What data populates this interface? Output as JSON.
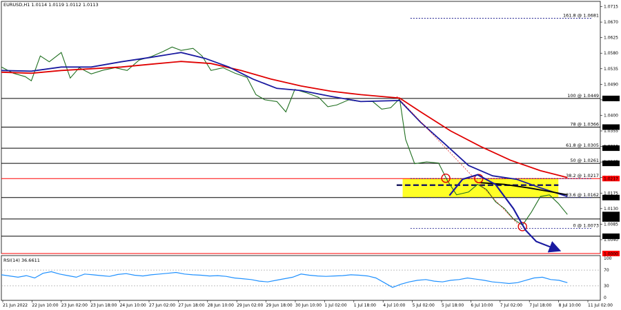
{
  "header": {
    "main_info": "EURUSD,H1  1.0114 1.0119 1.0112 1.0113",
    "rsi_info": "RSI(14) 36.6611"
  },
  "colors": {
    "background": "#ffffff",
    "level_line": "#000000",
    "red_line": "#ff0000",
    "red_ma": "#e00000",
    "blue_ma": "#1a1aa0",
    "black_ma": "#000000",
    "candle_up": "#00a000",
    "candle_down": "#000000",
    "zone": "#ffff00",
    "fib_dotted": "#000080",
    "rsi_line": "#1e90ff",
    "marker": "#e00000"
  },
  "chart_data": {
    "type": "line",
    "title": "EURUSD,H1",
    "ohlc_last": {
      "open": 1.0114,
      "high": 1.0119,
      "low": 1.0112,
      "close": 1.0113
    },
    "ylim": [
      1.0,
      1.073
    ],
    "price_ticks": [
      "1.0715",
      "1.0670",
      "1.0625",
      "1.0580",
      "1.0535",
      "1.0490",
      "1.0445",
      "1.0400",
      "1.0355",
      "1.0310",
      "1.0265",
      "1.0220",
      "1.0175",
      "1.0130",
      "1.0085",
      "1.0040"
    ],
    "x_ticks": [
      "21 Jun 2022",
      "22 Jun 10:00",
      "23 Jun 02:00",
      "23 Jun 18:00",
      "24 Jun 10:00",
      "27 Jun 02:00",
      "27 Jun 18:00",
      "28 Jun 10:00",
      "29 Jun 02:00",
      "29 Jun 18:00",
      "30 Jun 10:00",
      "1 Jul 02:00",
      "1 Jul 18:00",
      "4 Jul 10:00",
      "5 Jul 02:00",
      "5 Jul 18:00",
      "6 Jul 10:00",
      "7 Jul 02:00",
      "7 Jul 18:00",
      "8 Jul 10:00",
      "11 Jul 02:00"
    ],
    "fib_levels": [
      {
        "label": "161.8 @ 1.0681",
        "value": 1.0681,
        "style": "dotted"
      },
      {
        "label": "100 @ 1.0449",
        "value": 1.0449,
        "style": "solid"
      },
      {
        "label": "78 @ 1.0366",
        "value": 1.0366,
        "style": "solid"
      },
      {
        "label": "61.8 @ 1.0305",
        "value": 1.0305,
        "style": "solid"
      },
      {
        "label": "50 @ 1.0261",
        "value": 1.0261,
        "style": "solid"
      },
      {
        "label": "38.2 @ 1.0217",
        "value": 1.0217,
        "style": "dotted"
      },
      {
        "label": "23.6 @ 1.0162",
        "value": 1.0162,
        "style": "dotted"
      },
      {
        "label": "0 @ 1.0073",
        "value": 1.0073,
        "style": "dotted"
      }
    ],
    "horizontal_lines": [
      {
        "value": 1.0449,
        "color": "#000000"
      },
      {
        "value": 1.0366,
        "color": "#000000"
      },
      {
        "value": 1.0305,
        "color": "#000000"
      },
      {
        "value": 1.0261,
        "color": "#000000"
      },
      {
        "value": 1.0217,
        "color": "#ff0000"
      },
      {
        "value": 1.0162,
        "color": "#000000"
      },
      {
        "value": 1.01,
        "color": "#000000"
      },
      {
        "value": 1.005,
        "color": "#000000"
      },
      {
        "value": 1.0,
        "color": "#ff0000"
      }
    ],
    "axis_badges": [
      {
        "text": "1.0449",
        "value": 1.0449,
        "bg": "#000000",
        "fg": "#ffffff"
      },
      {
        "text": "1.0366",
        "value": 1.0366,
        "bg": "#000000",
        "fg": "#ffffff"
      },
      {
        "text": "1.0305",
        "value": 1.0305,
        "bg": "#000000",
        "fg": "#ffffff"
      },
      {
        "text": "1.0261",
        "value": 1.0261,
        "bg": "#000000",
        "fg": "#ffffff"
      },
      {
        "text": "1.0217",
        "value": 1.0217,
        "bg": "#ff0000",
        "fg": "#ffffff"
      },
      {
        "text": "1.0162",
        "value": 1.0162,
        "bg": "#000000",
        "fg": "#ffffff"
      },
      {
        "text": "1.0113",
        "value": 1.0113,
        "bg": "#000000",
        "fg": "#ffffff"
      },
      {
        "text": "1.0100",
        "value": 1.01,
        "bg": "#000000",
        "fg": "#ffffff"
      },
      {
        "text": "1.0050",
        "value": 1.005,
        "bg": "#000000",
        "fg": "#ffffff"
      },
      {
        "text": "1.0000",
        "value": 1.0,
        "bg": "#ff0000",
        "fg": "#ffffff"
      }
    ],
    "zone": {
      "from": 1.0162,
      "to": 1.0217,
      "x_start": 0.67,
      "x_end": 0.93
    },
    "dashed_resistance": {
      "value": 1.0198,
      "x_start": 0.66,
      "x_end": 0.93
    },
    "price_series": [
      [
        0.0,
        1.054
      ],
      [
        0.02,
        1.0522
      ],
      [
        0.04,
        1.0512
      ],
      [
        0.05,
        1.05
      ],
      [
        0.065,
        1.0572
      ],
      [
        0.08,
        1.0555
      ],
      [
        0.1,
        1.0582
      ],
      [
        0.115,
        1.0508
      ],
      [
        0.13,
        1.0538
      ],
      [
        0.15,
        1.052
      ],
      [
        0.17,
        1.0531
      ],
      [
        0.19,
        1.0538
      ],
      [
        0.21,
        1.053
      ],
      [
        0.23,
        1.056
      ],
      [
        0.25,
        1.057
      ],
      [
        0.27,
        1.0585
      ],
      [
        0.285,
        1.0598
      ],
      [
        0.3,
        1.0588
      ],
      [
        0.32,
        1.0594
      ],
      [
        0.335,
        1.0572
      ],
      [
        0.35,
        1.053
      ],
      [
        0.37,
        1.0538
      ],
      [
        0.39,
        1.0522
      ],
      [
        0.41,
        1.051
      ],
      [
        0.425,
        1.046
      ],
      [
        0.44,
        1.0445
      ],
      [
        0.46,
        1.044
      ],
      [
        0.475,
        1.041
      ],
      [
        0.49,
        1.0475
      ],
      [
        0.51,
        1.0465
      ],
      [
        0.53,
        1.0452
      ],
      [
        0.545,
        1.0425
      ],
      [
        0.56,
        1.043
      ],
      [
        0.58,
        1.0445
      ],
      [
        0.6,
        1.044
      ],
      [
        0.62,
        1.044
      ],
      [
        0.635,
        1.0418
      ],
      [
        0.65,
        1.0422
      ],
      [
        0.665,
        1.0448
      ],
      [
        0.675,
        1.033
      ],
      [
        0.69,
        1.026
      ],
      [
        0.71,
        1.0265
      ],
      [
        0.73,
        1.0262
      ],
      [
        0.745,
        1.021
      ],
      [
        0.76,
        1.017
      ],
      [
        0.78,
        1.0178
      ],
      [
        0.795,
        1.02
      ],
      [
        0.81,
        1.0185
      ],
      [
        0.825,
        1.015
      ],
      [
        0.84,
        1.013
      ],
      [
        0.855,
        1.01
      ],
      [
        0.87,
        1.0082
      ],
      [
        0.885,
        1.012
      ],
      [
        0.9,
        1.0165
      ],
      [
        0.915,
        1.017
      ],
      [
        0.93,
        1.0145
      ],
      [
        0.945,
        1.0113
      ]
    ],
    "series": [
      {
        "name": "",
        "color": "#e00000",
        "points": [
          [
            0.0,
            1.0525
          ],
          [
            0.05,
            1.0522
          ],
          [
            0.1,
            1.053
          ],
          [
            0.15,
            1.0535
          ],
          [
            0.2,
            1.054
          ],
          [
            0.25,
            1.0548
          ],
          [
            0.3,
            1.0556
          ],
          [
            0.35,
            1.055
          ],
          [
            0.4,
            1.053
          ],
          [
            0.45,
            1.0505
          ],
          [
            0.5,
            1.0485
          ],
          [
            0.55,
            1.047
          ],
          [
            0.6,
            1.046
          ],
          [
            0.665,
            1.045
          ],
          [
            0.7,
            1.041
          ],
          [
            0.75,
            1.0355
          ],
          [
            0.8,
            1.031
          ],
          [
            0.85,
            1.027
          ],
          [
            0.9,
            1.024
          ],
          [
            0.945,
            1.022
          ]
        ]
      },
      {
        "name": "",
        "color": "#1a1aa0",
        "points": [
          [
            0.0,
            1.053
          ],
          [
            0.05,
            1.0528
          ],
          [
            0.1,
            1.054
          ],
          [
            0.15,
            1.054
          ],
          [
            0.2,
            1.0555
          ],
          [
            0.25,
            1.0568
          ],
          [
            0.3,
            1.0582
          ],
          [
            0.34,
            1.0565
          ],
          [
            0.38,
            1.054
          ],
          [
            0.42,
            1.0505
          ],
          [
            0.46,
            1.0478
          ],
          [
            0.5,
            1.0472
          ],
          [
            0.55,
            1.0455
          ],
          [
            0.6,
            1.044
          ],
          [
            0.665,
            1.0443
          ],
          [
            0.7,
            1.038
          ],
          [
            0.74,
            1.0318
          ],
          [
            0.78,
            1.0255
          ],
          [
            0.82,
            1.0225
          ],
          [
            0.86,
            1.0215
          ],
          [
            0.9,
            1.019
          ],
          [
            0.945,
            1.0165
          ]
        ]
      },
      {
        "name": "",
        "color": "#000000",
        "points": [
          [
            0.8,
            1.0205
          ],
          [
            0.84,
            1.02
          ],
          [
            0.88,
            1.019
          ],
          [
            0.92,
            1.0178
          ],
          [
            0.945,
            1.017
          ]
        ]
      }
    ],
    "annotations": [
      {
        "type": "circle",
        "x": 0.742,
        "y": 1.0218,
        "color": "#e00000"
      },
      {
        "type": "circle",
        "x": 0.797,
        "y": 1.0217,
        "color": "#e00000"
      },
      {
        "type": "circle",
        "x": 0.87,
        "y": 1.0078,
        "color": "#e00000"
      },
      {
        "type": "arc-arrow",
        "color": "#1a1aa0",
        "points": [
          [
            0.748,
            1.0168
          ],
          [
            0.77,
            1.0215
          ],
          [
            0.795,
            1.0228
          ],
          [
            0.825,
            1.02
          ],
          [
            0.855,
            1.013
          ],
          [
            0.875,
            1.0068
          ],
          [
            0.893,
            1.0035
          ],
          [
            0.93,
            1.001
          ]
        ]
      },
      {
        "type": "dotted-diagonal",
        "color": "#e00000",
        "points": [
          [
            0.66,
            1.0455
          ],
          [
            0.868,
            1.0075
          ]
        ]
      }
    ],
    "rsi": {
      "name": "RSI(14)",
      "current": 36.6611,
      "ylim": [
        0,
        100
      ],
      "ticks": [
        "100",
        "70",
        "30",
        "0"
      ],
      "values": [
        58,
        55,
        52,
        56,
        50,
        62,
        66,
        60,
        56,
        52,
        60,
        58,
        56,
        54,
        59,
        61,
        57,
        55,
        58,
        60,
        62,
        64,
        60,
        58,
        57,
        55,
        56,
        54,
        50,
        48,
        46,
        42,
        40,
        44,
        48,
        52,
        60,
        57,
        55,
        54,
        55,
        56,
        58,
        57,
        55,
        50,
        38,
        26,
        34,
        40,
        44,
        46,
        42,
        40,
        44,
        46,
        50,
        47,
        44,
        40,
        38,
        36,
        38,
        44,
        50,
        52,
        46,
        44,
        38
      ]
    }
  }
}
